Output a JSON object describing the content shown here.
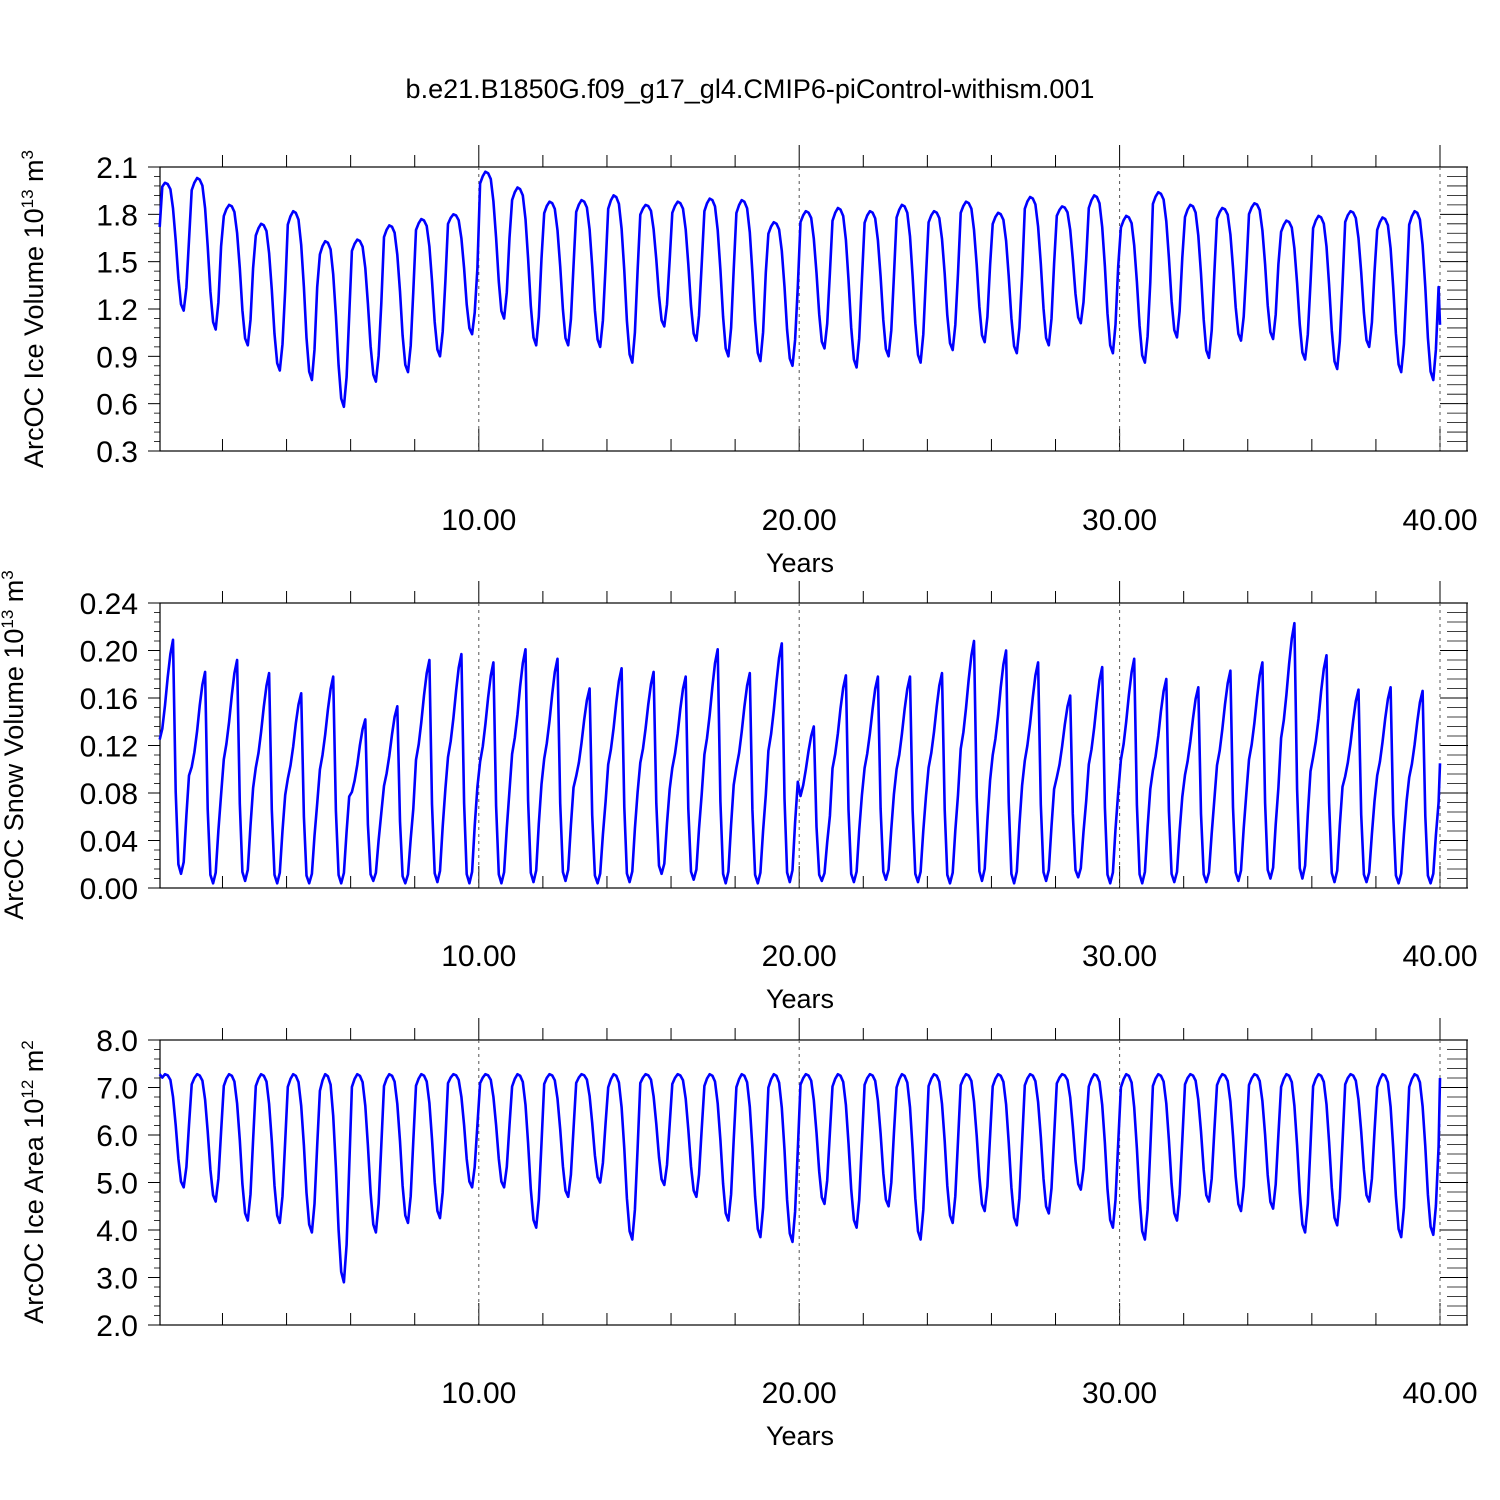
{
  "title": "b.e21.B1850G.f09_g17_gl4.CMIP6-piControl-withism.001",
  "line_color": "#0000ff",
  "chart_data": [
    {
      "type": "line",
      "ylabel": "ArcOC Ice Volume 10",
      "ylabel_exp": "13",
      "ylabel_unit": "m",
      "ylabel_unit_exp": "3",
      "xlabel": "Years",
      "xlim": [
        0.05,
        40
      ],
      "ylim": [
        0.3,
        2.1
      ],
      "yticks": [
        "0.3",
        "0.6",
        "0.9",
        "1.2",
        "1.5",
        "1.8",
        "2.1"
      ],
      "xticks": [
        "10.00",
        "20.00",
        "30.00",
        "40.00"
      ],
      "series": [
        {
          "maxima": [
            2.0,
            2.03,
            1.86,
            1.74,
            1.82,
            1.63,
            1.64,
            1.73,
            1.77,
            1.8,
            2.07,
            1.97,
            1.88,
            1.89,
            1.92,
            1.86,
            1.88,
            1.9,
            1.89,
            1.75,
            1.82,
            1.84,
            1.82,
            1.86,
            1.82,
            1.88,
            1.81,
            1.91,
            1.85,
            1.92,
            1.79,
            1.94,
            1.86,
            1.84,
            1.87,
            1.76,
            1.79,
            1.82,
            1.78,
            1.82
          ],
          "minima": [
            1.19,
            1.07,
            0.97,
            0.81,
            0.75,
            0.58,
            0.74,
            0.8,
            0.9,
            1.04,
            1.14,
            0.97,
            0.97,
            0.96,
            0.86,
            1.09,
            1.0,
            0.9,
            0.87,
            0.84,
            0.95,
            0.83,
            0.9,
            0.86,
            0.94,
            0.99,
            0.92,
            0.97,
            1.11,
            0.92,
            0.86,
            1.02,
            0.89,
            1.0,
            1.01,
            0.88,
            0.82,
            0.96,
            0.8,
            0.75
          ],
          "start": 1.72,
          "end": 1.1
        }
      ]
    },
    {
      "type": "line",
      "ylabel": "ArcOC Snow Volume 10",
      "ylabel_exp": "13",
      "ylabel_unit": "m",
      "ylabel_unit_exp": "3",
      "xlabel": "Years",
      "xlim": [
        0.05,
        40
      ],
      "ylim": [
        0.0,
        0.24
      ],
      "yticks": [
        "0.00",
        "0.04",
        "0.08",
        "0.12",
        "0.16",
        "0.20",
        "0.24"
      ],
      "xticks": [
        "10.00",
        "20.00",
        "30.00",
        "40.00"
      ],
      "series": [
        {
          "maxima": [
            0.209,
            0.182,
            0.192,
            0.181,
            0.164,
            0.178,
            0.142,
            0.153,
            0.192,
            0.197,
            0.19,
            0.201,
            0.193,
            0.168,
            0.185,
            0.182,
            0.178,
            0.201,
            0.181,
            0.206,
            0.136,
            0.179,
            0.178,
            0.178,
            0.181,
            0.208,
            0.2,
            0.19,
            0.162,
            0.186,
            0.193,
            0.176,
            0.169,
            0.183,
            0.19,
            0.223,
            0.196,
            0.167,
            0.169,
            0.166
          ],
          "minima": [
            0.012,
            0.004,
            0.006,
            0.004,
            0.004,
            0.004,
            0.006,
            0.004,
            0.005,
            0.004,
            0.004,
            0.005,
            0.006,
            0.004,
            0.005,
            0.012,
            0.007,
            0.004,
            0.004,
            0.005,
            0.006,
            0.005,
            0.007,
            0.005,
            0.004,
            0.006,
            0.004,
            0.006,
            0.009,
            0.004,
            0.004,
            0.005,
            0.005,
            0.006,
            0.008,
            0.008,
            0.005,
            0.005,
            0.004,
            0.004
          ],
          "start": 0.125,
          "end": 0.105
        }
      ]
    },
    {
      "type": "line",
      "ylabel": "ArcOC Ice Area 10",
      "ylabel_exp": "12",
      "ylabel_unit": "m",
      "ylabel_unit_exp": "2",
      "xlabel": "Years",
      "xlim": [
        0.05,
        40
      ],
      "ylim": [
        2.0,
        8.0
      ],
      "yticks": [
        "2.0",
        "3.0",
        "4.0",
        "5.0",
        "6.0",
        "7.0",
        "8.0"
      ],
      "xticks": [
        "10.00",
        "20.00",
        "30.00",
        "40.00"
      ],
      "series": [
        {
          "maxima": [
            7.28,
            7.28,
            7.28,
            7.28,
            7.28,
            7.28,
            7.28,
            7.28,
            7.28,
            7.28,
            7.28,
            7.28,
            7.28,
            7.28,
            7.28,
            7.28,
            7.28,
            7.28,
            7.28,
            7.28,
            7.28,
            7.28,
            7.28,
            7.28,
            7.28,
            7.28,
            7.28,
            7.28,
            7.28,
            7.28,
            7.28,
            7.28,
            7.28,
            7.28,
            7.28,
            7.28,
            7.28,
            7.28,
            7.28,
            7.28
          ],
          "minima": [
            4.9,
            4.6,
            4.2,
            4.15,
            3.95,
            2.9,
            3.95,
            4.15,
            4.25,
            4.9,
            4.9,
            4.05,
            4.7,
            5.0,
            3.8,
            4.95,
            4.7,
            4.2,
            3.85,
            3.75,
            4.55,
            4.05,
            4.5,
            3.8,
            4.15,
            4.4,
            4.1,
            4.35,
            4.85,
            4.05,
            3.8,
            4.2,
            4.6,
            4.4,
            4.45,
            3.95,
            4.1,
            4.6,
            3.85,
            3.9
          ],
          "start": 7.28,
          "end": 7.2
        }
      ]
    }
  ]
}
